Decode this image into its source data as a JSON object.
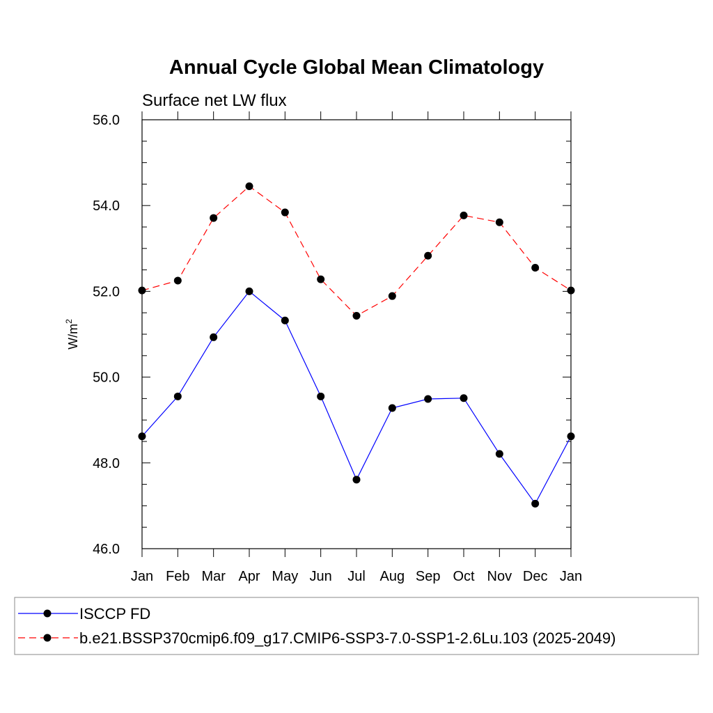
{
  "chart_data": {
    "type": "line",
    "title": "Annual Cycle Global Mean Climatology",
    "subtitle": "Surface net LW flux",
    "ylabel": "W/m",
    "ylabel_superscript": "2",
    "categories": [
      "Jan",
      "Feb",
      "Mar",
      "Apr",
      "May",
      "Jun",
      "Jul",
      "Aug",
      "Sep",
      "Oct",
      "Nov",
      "Dec",
      "Jan"
    ],
    "ylim": [
      46.0,
      56.0
    ],
    "yticks": [
      46.0,
      48.0,
      50.0,
      52.0,
      54.0,
      56.0
    ],
    "ytick_labels": [
      "46.0",
      "48.0",
      "50.0",
      "52.0",
      "54.0",
      "56.0"
    ],
    "grid": false,
    "legend_position": "bottom",
    "series": [
      {
        "name": "ISCCP FD",
        "color": "#0000ff",
        "dashed": false,
        "marker": "circle",
        "values": [
          48.62,
          49.55,
          50.93,
          52.0,
          51.32,
          49.55,
          47.61,
          49.28,
          49.49,
          49.51,
          48.21,
          47.05,
          48.62
        ]
      },
      {
        "name": "b.e21.BSSP370cmip6.f09_g17.CMIP6-SSP3-7.0-SSP1-2.6Lu.103 (2025-2049)",
        "color": "#ff0000",
        "dashed": true,
        "marker": "circle",
        "values": [
          52.02,
          52.25,
          53.71,
          54.45,
          53.84,
          52.28,
          51.43,
          51.89,
          52.83,
          53.77,
          53.61,
          52.55,
          52.02
        ]
      }
    ]
  }
}
